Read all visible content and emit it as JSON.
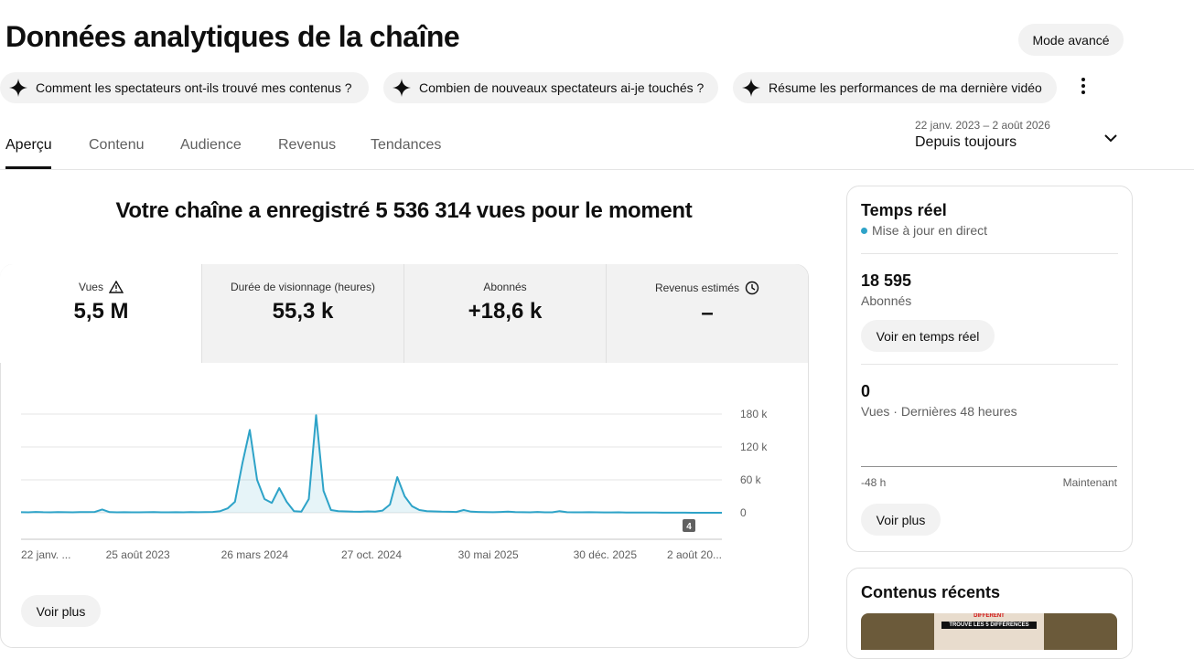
{
  "header": {
    "title": "Données analytiques de la chaîne",
    "advanced_button": "Mode avancé"
  },
  "chips": [
    "Comment les spectateurs ont-ils trouvé mes contenus ?",
    "Combien de nouveaux spectateurs ai-je touchés ?",
    "Résume les performances de ma dernière vidéo"
  ],
  "tabs": [
    "Aperçu",
    "Contenu",
    "Audience",
    "Revenus",
    "Tendances"
  ],
  "date_range": {
    "dates": "22 janv. 2023 – 2 août 2026",
    "label": "Depuis toujours"
  },
  "headline": "Votre chaîne a enregistré 5 536 314 vues pour le moment",
  "metrics": [
    {
      "label": "Vues",
      "value": "5,5 M"
    },
    {
      "label": "Durée de visionnage (heures)",
      "value": "55,3 k"
    },
    {
      "label": "Abonnés",
      "value": "+18,6 k"
    },
    {
      "label": "Revenus estimés",
      "value": "–"
    }
  ],
  "chart": {
    "type": "line",
    "color": "#2ea3c8",
    "x_labels": [
      "22 janv. ...",
      "25 août 2023",
      "26 mars 2024",
      "27 oct. 2024",
      "30 mai 2025",
      "30 déc. 2025",
      "2 août 20..."
    ],
    "values": [
      1000,
      900,
      1500,
      1000,
      800,
      1200,
      1000,
      900,
      1100,
      1300,
      1500,
      6000,
      1200,
      900,
      1000,
      800,
      900,
      1000,
      1200,
      900,
      800,
      1000,
      900,
      1100,
      1000,
      1200,
      1500,
      3000,
      8000,
      20000,
      90000,
      151000,
      60000,
      25000,
      18000,
      45000,
      20000,
      3000,
      2000,
      25000,
      178000,
      40000,
      5000,
      3000,
      2500,
      2000,
      1800,
      2500,
      2000,
      4000,
      15000,
      65000,
      30000,
      12000,
      5000,
      3000,
      2500,
      2000,
      1800,
      1500,
      5000,
      2000,
      1500,
      1200,
      1000,
      1500,
      2000,
      1200,
      1000,
      900,
      1500,
      800,
      900,
      3000,
      1000,
      800,
      900,
      1000,
      800,
      700,
      600,
      800,
      500,
      500,
      400,
      300,
      300,
      200,
      200,
      100,
      100,
      0,
      0,
      0,
      0,
      0
    ],
    "ylim": [
      0,
      180000
    ],
    "yticks": [
      0,
      {
        "value": 60000,
        "label": "60 k"
      },
      {
        "value": 120000,
        "label": "120 k"
      },
      {
        "value": 180000,
        "label": "180 k"
      }
    ],
    "grid": true,
    "annotation": "4"
  },
  "more_button": "Voir plus",
  "realtime": {
    "title": "Temps réel",
    "live": "Mise à jour en direct",
    "subscribers": "18 595",
    "subscribers_label": "Abonnés",
    "realtime_button": "Voir en temps réel",
    "views": "0",
    "views_label": "Vues · Dernières 48 heures",
    "axis_start": "-48 h",
    "axis_end": "Maintenant",
    "more_button": "Voir plus"
  },
  "recent": {
    "title": "Contenus récents",
    "thumb_top": "DIFFERENT",
    "thumb_text": "TROUVE LES 5 DIFFÉRENCES"
  }
}
